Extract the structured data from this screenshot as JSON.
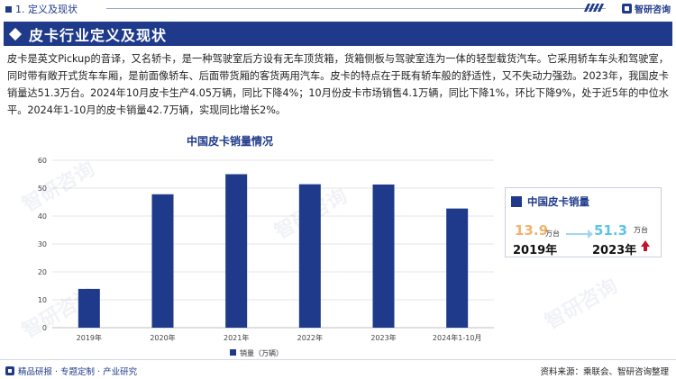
{
  "header": {
    "section_label": "1. 定义及现状",
    "brand": "智研咨询"
  },
  "title": "皮卡行业定义及现状",
  "description": "皮卡是英文Pickup的音译，又名轿卡，是一种驾驶室后方设有无车顶货箱，货箱侧板与驾驶室连为一体的轻型载货汽车。它采用轿车车头和驾驶室，同时带有敞开式货车车厢，是前面像轿车、后面带货厢的客货两用汽车。皮卡的特点在于既有轿车般的舒适性，又不失动力强劲。2023年，我国皮卡销量达51.3万台。2024年10月皮卡生产4.05万辆，同比下降4%；10月份皮卡市场销售4.1万辆，同比下降1%，环比下降9%，处于近5年的中位水平。2024年1-10月的皮卡销量42.7万辆，实现同比增长2%。",
  "chart_data": {
    "type": "bar",
    "title": "中国皮卡销量情况",
    "categories": [
      "2019年",
      "2020年",
      "2021年",
      "2022年",
      "2023年",
      "2024年1-10月"
    ],
    "series": [
      {
        "name": "销量（万辆）",
        "values": [
          13.9,
          47.8,
          55.0,
          51.4,
          51.3,
          42.7
        ],
        "color": "#1f3a8a"
      }
    ],
    "ylim": [
      0,
      60
    ],
    "yticks": [
      "0",
      "10",
      "20",
      "30",
      "40",
      "50",
      "60"
    ],
    "grid": true,
    "legend_position": "bottom"
  },
  "card": {
    "title": "中国皮卡销量",
    "from_value": "13.9",
    "from_unit": "万台",
    "from_year": "2019年",
    "to_value": "51.3",
    "to_unit": "万台",
    "to_year": "2023年"
  },
  "footer": {
    "left": "精品研报 · 专题定制 · 产业研究",
    "right": "资料来源：乘联会、智研咨询整理"
  },
  "watermark_text": "智研咨询",
  "colors": {
    "primary": "#1f3a8a",
    "accent_orange": "#f3b36b",
    "accent_cyan": "#5ec3ea",
    "arrow_red": "#c8102e"
  }
}
